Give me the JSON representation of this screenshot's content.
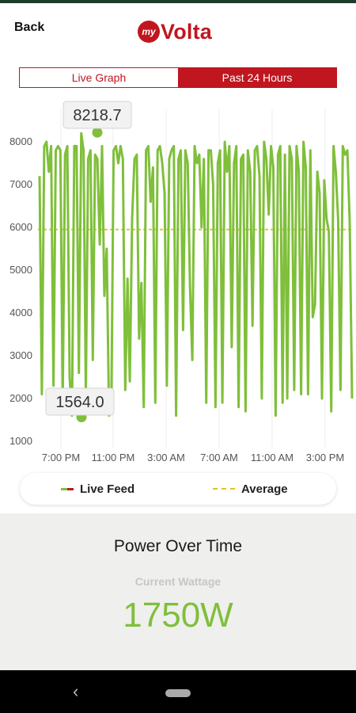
{
  "header": {
    "back_label": "Back",
    "logo_prefix": "my",
    "logo_word": "Volta",
    "brand_color": "#c0161f"
  },
  "tabs": [
    {
      "label": "Live Graph",
      "active": false
    },
    {
      "label": "Past 24 Hours",
      "active": true
    }
  ],
  "chart_data": {
    "type": "line",
    "xlabel": "",
    "ylabel": "",
    "ylim": [
      1000,
      8500
    ],
    "y_ticks": [
      1000,
      2000,
      3000,
      4000,
      5000,
      6000,
      7000,
      8000
    ],
    "x_tick_labels": [
      "7:00 PM",
      "11:00 PM",
      "3:00 AM",
      "7:00 AM",
      "11:00 AM",
      "3:00 PM"
    ],
    "series": [
      {
        "name": "Live Feed",
        "color": "#7fbf3a",
        "values": [
          7200,
          2100,
          7900,
          8000,
          7300,
          7900,
          2300,
          7800,
          7900,
          7800,
          2000,
          7700,
          7900,
          2500,
          1600,
          7900,
          7900,
          2600,
          8200,
          7800,
          2100,
          7600,
          7800,
          2900,
          7700,
          7600,
          5600,
          7900,
          4400,
          5500,
          1600,
          1700,
          7800,
          7900,
          7500,
          7900,
          7600,
          2200,
          4800,
          2400,
          6200,
          7600,
          7700,
          3400,
          4700,
          1800,
          7800,
          7900,
          6600,
          7400,
          1900,
          7800,
          7900,
          7500,
          6800,
          2300,
          7600,
          7800,
          7900,
          1600,
          7600,
          7800,
          3600,
          7800,
          7500,
          4600,
          2900,
          7900,
          7500,
          7700,
          6000,
          7600,
          1900,
          7800,
          7800,
          7000,
          1800,
          7500,
          7800,
          1900,
          8000,
          7300,
          7900,
          3200,
          7500,
          7900,
          1800,
          7600,
          7700,
          1700,
          7800,
          7300,
          3700,
          7800,
          7900,
          7200,
          2000,
          8000,
          7600,
          6300,
          7900,
          7400,
          1600,
          7700,
          7900,
          1900,
          7700,
          2000,
          7900,
          7600,
          2200,
          7900,
          7300,
          2100,
          8000,
          7400,
          2100,
          7800,
          3900,
          4200,
          7300,
          6800,
          2000,
          7100,
          6200,
          5900,
          1700,
          7900,
          7300,
          6200,
          2200,
          7900,
          7700,
          7800,
          6100,
          2000
        ]
      },
      {
        "name": "Average",
        "color": "#e6c21a",
        "value": 5950
      }
    ],
    "annotations": [
      {
        "label": "8218.7",
        "value": 8218.7,
        "kind": "max"
      },
      {
        "label": "1564.0",
        "value": 1564.0,
        "kind": "min"
      }
    ],
    "grid": true,
    "legend_position": "bottom"
  },
  "legend": {
    "live_label": "Live Feed",
    "avg_label": "Average"
  },
  "panel": {
    "title": "Power Over Time",
    "subtitle": "Current Wattage",
    "value": "1750W"
  }
}
